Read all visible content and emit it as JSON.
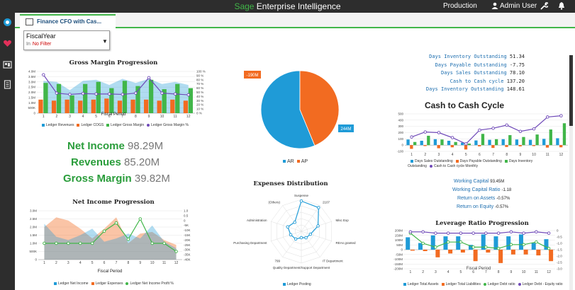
{
  "topbar": {
    "brand": "Sage",
    "app": " Enterprise Intelligence",
    "environment": "Production",
    "user": "Admin User"
  },
  "tab": {
    "label": "Finance CFO with Cas..."
  },
  "filter": {
    "label": "FiscalYear",
    "prefix": "In",
    "value": "No Filter"
  },
  "colors": {
    "green": "#41b649",
    "blue": "#1f9bd7",
    "orange": "#f26b21",
    "purple": "#6f49b8"
  },
  "gross_margin": {
    "title": "Gross Margin Progression",
    "x_title": "Fiscal Period",
    "legend": [
      "Ledger Revenues",
      "Ledger COGS",
      "Ledger Gross Margin",
      "Ledger Gross Margin %"
    ]
  },
  "kpis": [
    {
      "label": "Net Income",
      "value": "98.29M"
    },
    {
      "label": "Revenues",
      "value": "85.20M"
    },
    {
      "label": "Gross Margin",
      "value": "39.82M"
    }
  ],
  "net_income": {
    "title": "Net Income Progression",
    "x_title": "Fiscal Period",
    "legend": [
      "Ledger Net Income",
      "Ledger Expenses",
      "Ledger Net Income Profit %"
    ]
  },
  "pie": {
    "legend": [
      "AR",
      "AP"
    ],
    "ar_label": "244M",
    "ap_label": "-190M"
  },
  "expenses": {
    "title": "Expenses Distribution",
    "labels": [
      "Suspense",
      "2107",
      "Misc Exp",
      "REAs granted",
      "IT Department",
      "Quality Department/Support Department",
      "799",
      "Purchasing Department",
      "Administration",
      "(Others)"
    ],
    "legend": [
      "Ledger Posting"
    ]
  },
  "days_metrics": [
    {
      "label": "Days Inventory Outstanding",
      "value": "51.34"
    },
    {
      "label": "Days Payable Outstanding",
      "value": "-7.75"
    },
    {
      "label": "Days Sales Outstanding",
      "value": "78.10"
    },
    {
      "label": "Cash to Cash cycle",
      "value": "137.20"
    },
    {
      "label": "Days Inventory Outstanding",
      "value": "148.61"
    }
  ],
  "c2c": {
    "title": "Cash to Cash Cycle",
    "legend": [
      "Days Sales Outstanding",
      "Days Payable Outstanding",
      "Days Inventory Outstanding",
      "Cash to Cash cycle Monthly"
    ]
  },
  "working": [
    {
      "label": "Working Capital",
      "value": "93.45M"
    },
    {
      "label": "Working Capital Ratio",
      "value": "-1.18"
    },
    {
      "label": "Return on Assets",
      "value": "-0.57%"
    },
    {
      "label": "Return on Equity",
      "value": "-0.57%"
    }
  ],
  "leverage": {
    "title": "Leverage Ratio Progression",
    "x_title": "Fiscal Period",
    "legend": [
      "Ledger Total Assets",
      "Ledger Total Liabilities",
      "Ledger Debt ratio",
      "Ledger Debt - Equity ratio"
    ]
  },
  "chart_data": [
    {
      "type": "bar",
      "title": "Gross Margin Progression",
      "xlabel": "Fiscal Period",
      "categories": [
        "1",
        "2",
        "3",
        "4",
        "5",
        "6",
        "7",
        "8",
        "9",
        "10",
        "11",
        "12"
      ],
      "ylim": [
        0,
        4000000
      ],
      "y_ticks": [
        "0",
        "500K",
        "1.0M",
        "1.5M",
        "2.0M",
        "2.5M",
        "3.0M",
        "3.5M",
        "4.0M"
      ],
      "y2_ticks": [
        "0 %",
        "10 %",
        "20 %",
        "30 %",
        "40 %",
        "50 %",
        "60 %",
        "70 %",
        "80 %",
        "90 %",
        "100 %"
      ],
      "series": [
        {
          "name": "Ledger Revenues",
          "values": [
            3100000,
            3000000,
            2200000,
            3100000,
            3200000,
            2700000,
            3300000,
            2900000,
            3300000,
            2800000,
            3000000,
            2700000
          ]
        },
        {
          "name": "Ledger COGS",
          "values": [
            1300000,
            1200000,
            1300000,
            1200000,
            1300000,
            1400000,
            1200000,
            1300000,
            1300000,
            1200000,
            1300000,
            1200000
          ]
        },
        {
          "name": "Ledger Gross Margin",
          "values": [
            2900000,
            2800000,
            1700000,
            2800000,
            3000000,
            2400000,
            3100000,
            2600000,
            3200000,
            2300000,
            2800000,
            2400000
          ]
        },
        {
          "name": "Ledger Gross Margin %",
          "values": [
            92,
            48,
            45,
            47,
            46,
            46,
            45,
            48,
            85,
            48,
            46,
            44
          ]
        }
      ]
    },
    {
      "type": "pie",
      "categories": [
        "AR",
        "AP"
      ],
      "values": [
        244,
        190
      ],
      "labels": [
        "244M",
        "-190M"
      ]
    },
    {
      "type": "bar",
      "title": "Net Income Progression",
      "xlabel": "Fiscal Period",
      "categories": [
        "1",
        "2",
        "3",
        "4",
        "5",
        "6",
        "7",
        "8",
        "9",
        "10",
        "11",
        "12"
      ],
      "y_ticks": [
        "0",
        "500K",
        "1.0M",
        "1.5M",
        "2.0M",
        "2.5M",
        "3.0M"
      ],
      "y2_ticks": [
        "-40K",
        "-35K",
        "-30K",
        "-25K",
        "-20K",
        "-15K",
        "-10K",
        "-5K",
        "0",
        "0.5",
        "1.0"
      ],
      "series": [
        {
          "name": "Ledger Net Income",
          "values": [
            2200000,
            1400000,
            1200000,
            1500000,
            1900000,
            1100000,
            1300000,
            1600000,
            1300000,
            2100000,
            1100000,
            700000
          ]
        },
        {
          "name": "Ledger Expenses",
          "values": [
            2000000,
            2600000,
            2400000,
            1900000,
            1300000,
            1900000,
            2600000,
            1000000,
            1600000,
            1700000,
            1200000,
            900000
          ]
        },
        {
          "name": "Ledger Net Income Profit %",
          "values": [
            0.4,
            0.4,
            0.4,
            0.4,
            0.4,
            0.7,
            0.9,
            0.5,
            1.0,
            0.4,
            0.4,
            0.2
          ]
        }
      ]
    },
    {
      "type": "radar",
      "title": "Expenses Distribution",
      "categories": [
        "Suspense",
        "2107",
        "Misc Exp",
        "REAs granted",
        "IT Department",
        "Quality Department/Support Department",
        "799",
        "Purchasing Department",
        "Administration",
        "(Others)"
      ],
      "series": [
        {
          "name": "Ledger Posting",
          "values": [
            0.95,
            0.92,
            0.55,
            0.3,
            0.25,
            0.2,
            0.3,
            0.35,
            0.45,
            0.35
          ]
        }
      ]
    },
    {
      "type": "bar",
      "title": "Cash to Cash Cycle",
      "categories": [
        "1",
        "2",
        "3",
        "4",
        "5",
        "6",
        "7",
        "8",
        "9",
        "10",
        "11",
        "12"
      ],
      "ylim": [
        -100,
        500
      ],
      "y_ticks": [
        "-100",
        "0",
        "100",
        "200",
        "300",
        "400",
        "500"
      ],
      "series": [
        {
          "name": "Days Sales Outstanding",
          "values": [
            90,
            70,
            95,
            70,
            40,
            75,
            85,
            95,
            90,
            85,
            100,
            110
          ]
        },
        {
          "name": "Days Payable Outstanding",
          "values": [
            -60,
            -15,
            -50,
            -35,
            -70,
            -20,
            -45,
            -30,
            -20,
            -15,
            -40,
            -35
          ]
        },
        {
          "name": "Days Inventory Outstanding",
          "values": [
            50,
            150,
            90,
            50,
            25,
            180,
            95,
            160,
            130,
            170,
            250,
            350
          ]
        },
        {
          "name": "Cash to Cash cycle Monthly",
          "values": [
            130,
            210,
            200,
            120,
            20,
            240,
            270,
            320,
            220,
            260,
            450,
            470
          ]
        }
      ]
    },
    {
      "type": "bar",
      "title": "Leverage Ratio Progression",
      "xlabel": "Fiscal Period",
      "categories": [
        "1",
        "2",
        "3",
        "4",
        "5",
        "6",
        "7",
        "8",
        "9",
        "10",
        "11",
        "12"
      ],
      "y_ticks": [
        "-200M",
        "-150M",
        "-100M",
        "-50M",
        "0",
        "50M",
        "100M",
        "150M",
        "200M"
      ],
      "y2_ticks": [
        "-3.0",
        "-2.5",
        "-2.0",
        "-1.5",
        "-1.0",
        "-0.5",
        "0"
      ],
      "series": [
        {
          "name": "Ledger Total Assets",
          "values": [
            130000000,
            70000000,
            150000000,
            140000000,
            140000000,
            50000000,
            160000000,
            140000000,
            140000000,
            160000000,
            70000000,
            110000000
          ]
        },
        {
          "name": "Ledger Total Liabilities",
          "values": [
            -10000000,
            -15000000,
            -80000000,
            -40000000,
            -30000000,
            -120000000,
            -30000000,
            -140000000,
            -50000000,
            -50000000,
            -60000000,
            -120000000
          ]
        },
        {
          "name": "Ledger Debt ratio",
          "values": [
            -0.2,
            -1.0,
            -1.3,
            -0.9,
            -0.9,
            -1.3,
            -1.3,
            -1.4,
            -1.1,
            -1.1,
            -0.9,
            -1.4
          ]
        },
        {
          "name": "Ledger Debt - Equity ratio",
          "values": [
            -0.1,
            -0.1,
            -0.2,
            -0.2,
            -0.2,
            -0.2,
            -0.2,
            -0.2,
            -0.1,
            -0.2,
            -0.1,
            -0.2
          ]
        }
      ]
    }
  ]
}
